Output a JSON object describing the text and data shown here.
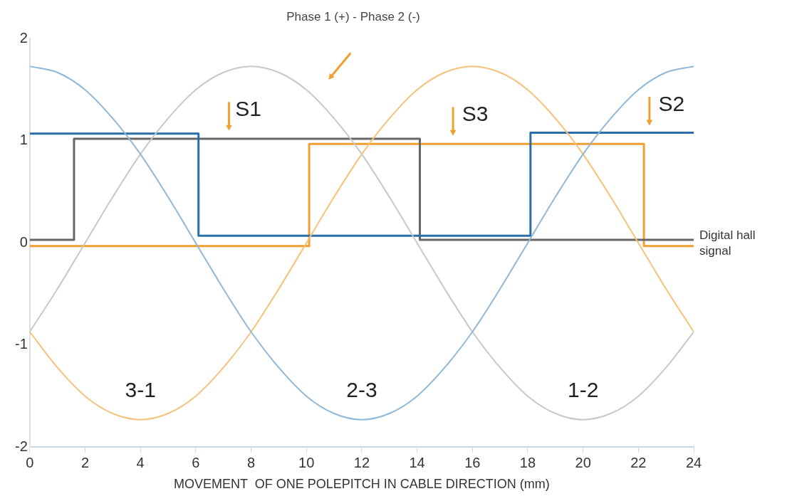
{
  "chart_data": {
    "type": "line",
    "title": "Phase 1 (+) - Phase 2 (-)",
    "xlabel": "MOVEMENT  OF ONE POLEPITCH IN CABLE DIRECTION (mm)",
    "x": [
      0,
      1,
      2,
      3,
      4,
      5,
      6,
      7,
      8,
      9,
      10,
      11,
      12,
      13,
      14,
      15,
      16,
      17,
      18,
      19,
      20,
      21,
      22,
      23,
      24
    ],
    "series": [
      {
        "color": "#8fb8d8",
        "values": [
          1.73,
          1.67,
          1.5,
          1.22,
          0.87,
          0.45,
          0,
          -0.45,
          -0.87,
          -1.22,
          -1.5,
          -1.67,
          -1.73,
          -1.67,
          -1.5,
          -1.22,
          -0.87,
          -0.45,
          0,
          0.45,
          0.87,
          1.22,
          1.5,
          1.67,
          1.73
        ]
      },
      {
        "color": "#c8c8c8",
        "values": [
          -0.87,
          -0.45,
          0,
          0.45,
          0.87,
          1.22,
          1.5,
          1.67,
          1.73,
          1.67,
          1.5,
          1.22,
          0.87,
          0.45,
          0,
          -0.45,
          -0.87,
          -1.22,
          -1.5,
          -1.67,
          -1.73,
          -1.67,
          -1.5,
          -1.22,
          -0.87
        ]
      },
      {
        "color": "#f5c27a",
        "values": [
          -0.87,
          -1.22,
          -1.5,
          -1.67,
          -1.73,
          -1.67,
          -1.5,
          -1.22,
          -0.87,
          -0.45,
          0,
          0.45,
          0.87,
          1.22,
          1.5,
          1.67,
          1.73,
          1.67,
          1.5,
          1.22,
          0.87,
          0.45,
          0,
          -0.45,
          -0.87
        ]
      },
      {
        "type": "step",
        "color": "#2a6fa8",
        "x": [
          0,
          6.1,
          18.1,
          24
        ],
        "values": [
          1.07,
          0.07,
          1.08,
          1.08
        ]
      },
      {
        "type": "step",
        "color": "#666666",
        "x": [
          0,
          1.6,
          14.1,
          24
        ],
        "values": [
          0.03,
          1.02,
          0.03,
          0.03
        ]
      },
      {
        "type": "step",
        "color": "#f0a030",
        "x": [
          0,
          10.1,
          22.2,
          24
        ],
        "values": [
          -0.03,
          0.97,
          -0.03,
          -0.03
        ]
      }
    ],
    "xlim": [
      0,
      24
    ],
    "xticks": [
      0,
      2,
      4,
      6,
      8,
      10,
      12,
      14,
      16,
      18,
      20,
      22,
      24
    ],
    "ylim": [
      -2,
      2
    ],
    "yticks": [
      -2,
      -1,
      0,
      1,
      2
    ],
    "grid": false,
    "legend": false,
    "marker": "none",
    "annotations": [
      "S1",
      "S3",
      "S2",
      "3-1",
      "2-3",
      "1-2",
      "Digital hall signal"
    ]
  }
}
